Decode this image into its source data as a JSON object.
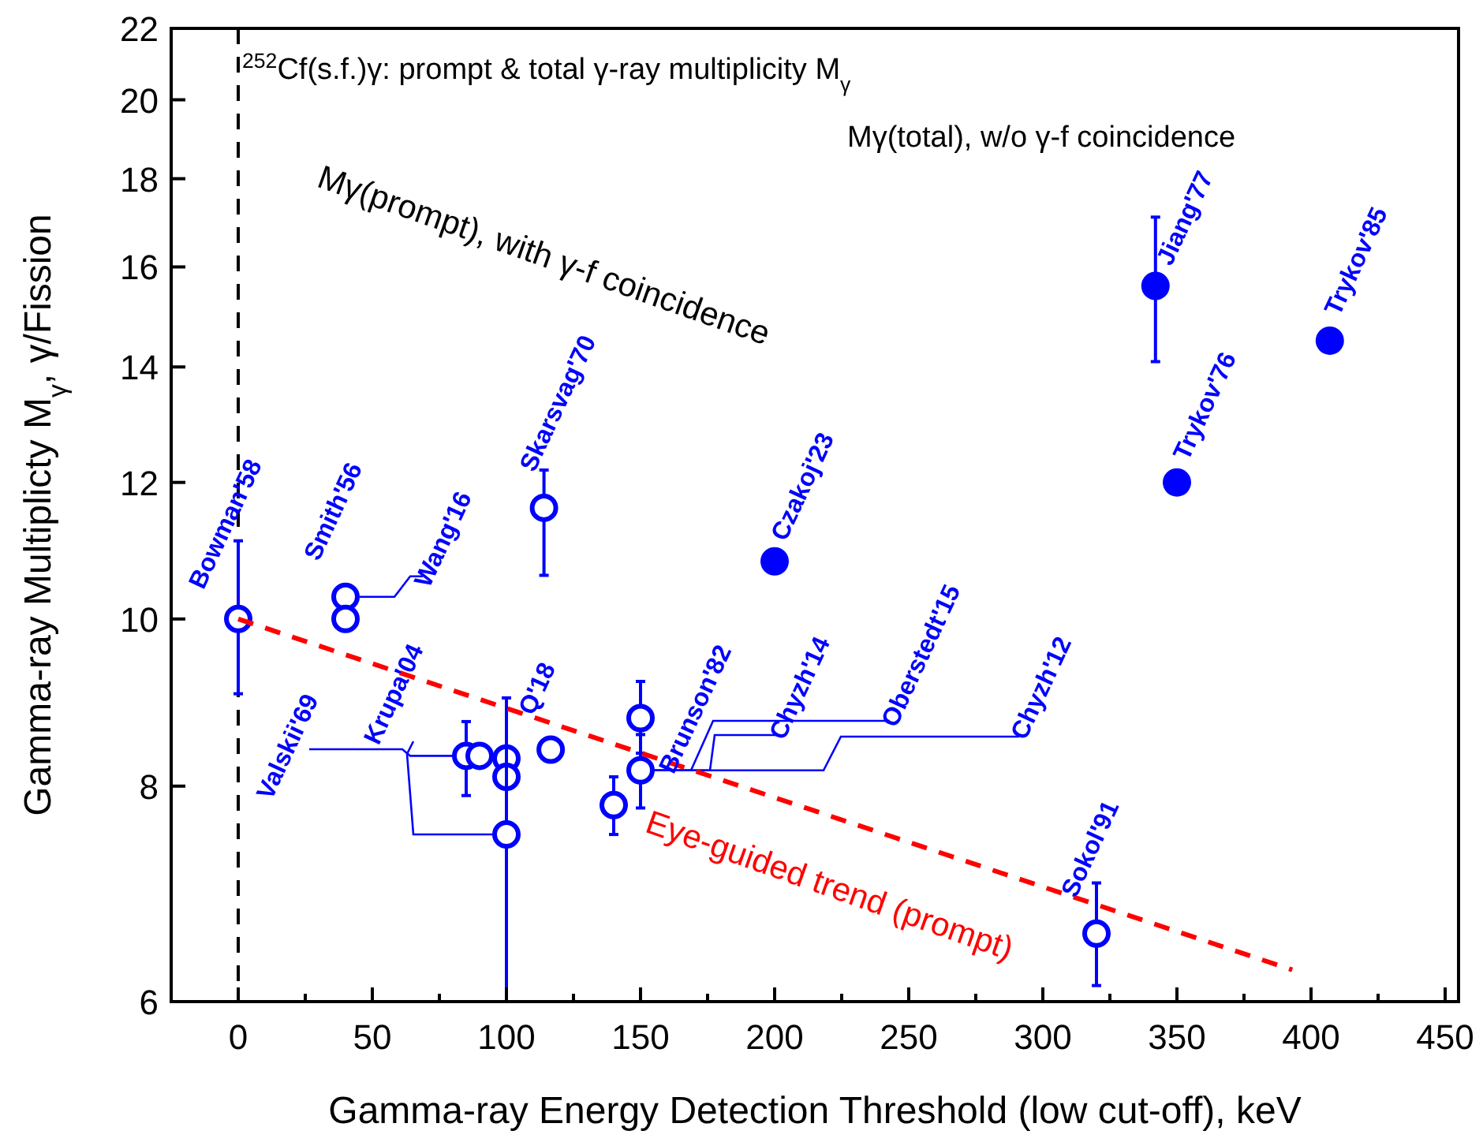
{
  "chart_data": {
    "type": "scatter",
    "title": "$^{252}$Cf(s.f.)γ: prompt & total γ-ray multiplicity M$_{γ}$",
    "xlabel": "Gamma-ray Energy Detection Threshold (low cut-off),  keV",
    "ylabel": "Gamma-ray Multiplicty M$_{γ}$,   γ/Fission",
    "log": "y",
    "xlim": [
      -25,
      455
    ],
    "ylim": [
      6,
      22
    ],
    "xticks": [
      0,
      {
        "value": 25,
        "label": null
      },
      50,
      {
        "value": 75,
        "label": null
      },
      100,
      {
        "value": 125,
        "label": null
      },
      150,
      {
        "value": 175,
        "label": null
      },
      200,
      {
        "value": 225,
        "label": null
      },
      250,
      {
        "value": 275,
        "label": null
      },
      300,
      {
        "value": 325,
        "label": null
      },
      350,
      {
        "value": 375,
        "label": null
      },
      400,
      {
        "value": 425,
        "label": null
      },
      450
    ],
    "yticks": [
      6,
      8,
      10,
      12,
      14,
      16,
      18,
      20,
      22
    ],
    "grid": false,
    "marker": "circle",
    "ref_lines": [
      {
        "axis": "x",
        "value": 0,
        "color": "#000000",
        "line_style": "dashed"
      }
    ],
    "series": [
      {
        "type": "scatter",
        "color": "#0000ff",
        "x": [
          0,
          40,
          40,
          114,
          85,
          90,
          100,
          100,
          100,
          116.5,
          150,
          150,
          140,
          320
        ],
        "values": [
          10,
          10.3,
          10.0,
          11.6,
          8.33,
          8.33,
          8.3,
          8.1,
          7.5,
          8.4,
          8.76,
          8.17,
          7.8,
          6.57
        ],
        "errors": [
          [
            9.05,
            11.1
          ],
          null,
          null,
          [
            10.6,
            12.2
          ],
          [
            7.9,
            8.72
          ],
          null,
          null,
          null,
          [
            6.0,
            9.0
          ],
          [
            8.28,
            8.5
          ],
          [
            8.36,
            9.2
          ],
          [
            7.77,
            8.57
          ],
          [
            7.5,
            8.1
          ],
          [
            6.13,
            7.03
          ]
        ]
      },
      {
        "type": "scatter",
        "color": "#0000ff",
        "x": [
          200,
          342,
          350,
          407
        ],
        "values": [
          10.8,
          15.6,
          12.0,
          14.5
        ],
        "errors": [
          null,
          [
            14.1,
            17.1
          ],
          null,
          null
        ]
      },
      {
        "type": "line",
        "name": "Eye-guided trend (prompt)",
        "color": "#ff0000",
        "line_style": "dashed",
        "marker": "none",
        "x": [
          0,
          393
        ],
        "values": [
          10,
          6.26
        ]
      }
    ],
    "annotations": [
      {
        "text": "Bowman'58",
        "x": 0,
        "y": 10
      },
      {
        "text": "Smith'56",
        "x": 40,
        "y": 10.0
      },
      {
        "text": "Wang'16",
        "x": 40,
        "y": 10.3
      },
      {
        "text": "Skarsvag'70",
        "x": 114,
        "y": 11.6
      },
      {
        "text": "Valskii'69",
        "x": 85,
        "y": 8.33
      },
      {
        "text": "Krupa'04",
        "x": 100,
        "y": 7.5
      },
      {
        "text": "Q'18",
        "x": 116.5,
        "y": 8.4
      },
      {
        "text": "Brunson'82",
        "x": 150,
        "y": 8.17
      },
      {
        "text": "Chyzh'14",
        "x": 150,
        "y": 8.17
      },
      {
        "text": "Oberstedt'15",
        "x": 150,
        "y": 8.17
      },
      {
        "text": "Chyzh'12",
        "x": 150,
        "y": 8.17
      },
      {
        "text": "Sokol'91",
        "x": 320,
        "y": 6.57
      },
      {
        "text": "Czakoj'23",
        "x": 200,
        "y": 10.8
      },
      {
        "text": "Jiang'77",
        "x": 342,
        "y": 15.6
      },
      {
        "text": "Trykov'76",
        "x": 350,
        "y": 12.0
      },
      {
        "text": "Trykov'85",
        "x": 407,
        "y": 14.5
      },
      "Mγ(prompt), with γ-f coincidence",
      "Mγ(total), w/o γ-f coincidence"
    ]
  }
}
